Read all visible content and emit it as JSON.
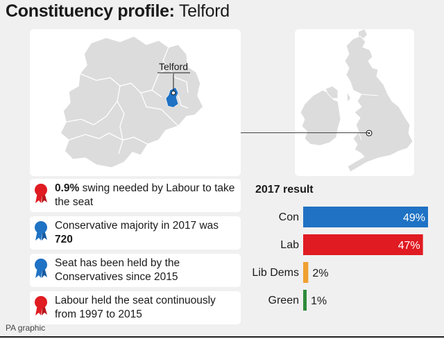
{
  "header": {
    "title_bold": "Constituency profile:",
    "title_regular": "Telford"
  },
  "map": {
    "place_label": "Telford",
    "seat_color": "#1f72c4"
  },
  "facts": [
    {
      "bold_part": "0.9%",
      "text": " swing needed by Labour to take the seat",
      "party": "Labour",
      "color": "#e01b22"
    },
    {
      "text": "Conservative majority in 2017 was ",
      "bold_part": "720",
      "party": "Conservative",
      "color": "#1f72c4"
    },
    {
      "text": "Seat has been held by the Conservatives since 2015",
      "party": "Conservative",
      "color": "#1f72c4"
    },
    {
      "text": "Labour held the seat continuously from 1997 to 2015",
      "party": "Labour",
      "color": "#e01b22"
    }
  ],
  "results": {
    "title": "2017 result"
  },
  "chart_data": {
    "type": "bar",
    "orientation": "horizontal",
    "title": "2017 result",
    "categories": [
      "Con",
      "Lab",
      "Lib Dems",
      "Green"
    ],
    "values": [
      49,
      47,
      2,
      1
    ],
    "value_labels": [
      "49%",
      "47%",
      "2%",
      "1%"
    ],
    "colors": [
      "#1f72c4",
      "#e01b22",
      "#f0a030",
      "#2e8b3a"
    ],
    "xlim": [
      0,
      49
    ],
    "grid": false,
    "legend": "none"
  },
  "footer": {
    "source": "PA graphic"
  }
}
